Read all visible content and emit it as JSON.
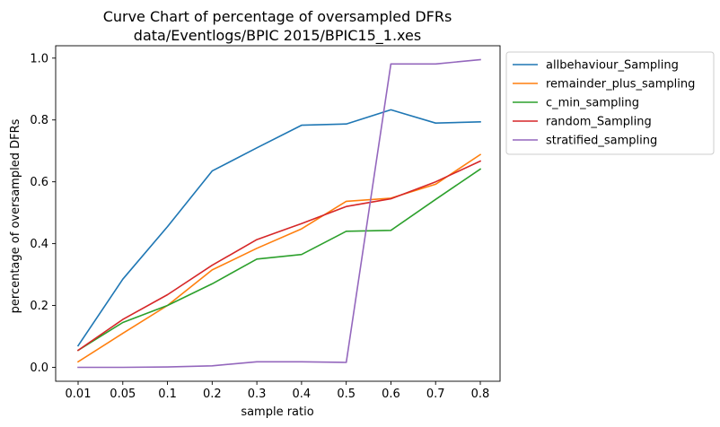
{
  "chart_data": {
    "type": "line",
    "title": "Curve Chart of percentage of oversampled DFRs",
    "subtitle": "data/Eventlogs/BPIC 2015/BPIC15_1.xes",
    "xlabel": "sample ratio",
    "ylabel": "percentage of oversampled DFRs",
    "categories": [
      "0.01",
      "0.05",
      "0.1",
      "0.2",
      "0.3",
      "0.4",
      "0.5",
      "0.6",
      "0.7",
      "0.8"
    ],
    "ylim": [
      -0.045,
      1.04
    ],
    "yticks": [
      "0.0",
      "0.2",
      "0.4",
      "0.6",
      "0.8",
      "1.0"
    ],
    "grid": false,
    "legend_position": "outside-top-right",
    "series": [
      {
        "name": "allbehaviour_Sampling",
        "color": "#1f77b4",
        "values": [
          0.07,
          0.285,
          0.455,
          0.635,
          0.71,
          0.783,
          0.787,
          0.833,
          0.79,
          0.794
        ]
      },
      {
        "name": "remainder_plus_sampling",
        "color": "#ff7f0e",
        "values": [
          0.018,
          0.11,
          0.2,
          0.315,
          0.385,
          0.448,
          0.537,
          0.547,
          0.592,
          0.688
        ]
      },
      {
        "name": "c_min_sampling",
        "color": "#2ca02c",
        "values": [
          0.055,
          0.145,
          0.2,
          0.27,
          0.35,
          0.365,
          0.44,
          0.443,
          0.543,
          0.641
        ]
      },
      {
        "name": "random_Sampling",
        "color": "#d62728",
        "values": [
          0.055,
          0.155,
          0.235,
          0.33,
          0.413,
          0.465,
          0.52,
          0.545,
          0.6,
          0.667
        ]
      },
      {
        "name": "stratified_sampling",
        "color": "#9467bd",
        "values": [
          0.0,
          0.0,
          0.001,
          0.005,
          0.018,
          0.018,
          0.016,
          0.981,
          0.981,
          0.995
        ]
      }
    ]
  }
}
